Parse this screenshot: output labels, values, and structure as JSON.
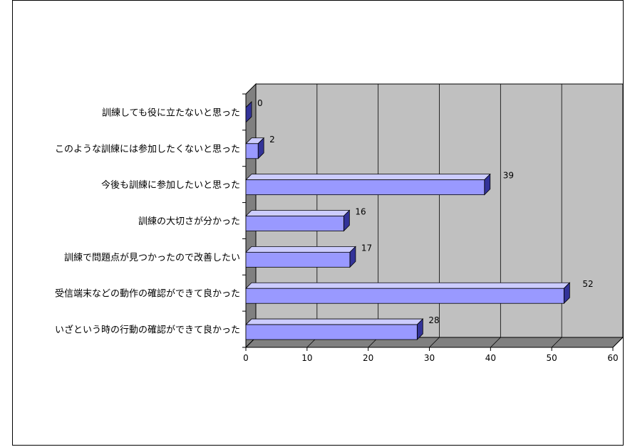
{
  "chart_data": {
    "type": "bar",
    "orientation": "horizontal",
    "style": "3d",
    "categories": [
      "訓練しても役に立たないと思った",
      "このような訓練には参加したくないと思った",
      "今後も訓練に参加したいと思った",
      "訓練の大切さが分かった",
      "訓練で問題点が見つかったので改善したい",
      "受信端末などの動作の確認ができて良かった",
      "いざという時の行動の確認ができて良かった"
    ],
    "values": [
      0,
      2,
      39,
      16,
      17,
      52,
      28
    ],
    "data_labels": [
      "0",
      "2",
      "39",
      "16",
      "17",
      "52",
      "28"
    ],
    "xlim": [
      0,
      60
    ],
    "x_ticks": [
      "0",
      "10",
      "20",
      "30",
      "40",
      "50",
      "60"
    ],
    "grid": true,
    "legend": "none",
    "colors": {
      "bar_front": "#9999ff",
      "bar_top": "#ccccff",
      "bar_side": "#333399",
      "wall": "#c0c0c0",
      "floor": "#808080",
      "grid": "#000000"
    }
  }
}
